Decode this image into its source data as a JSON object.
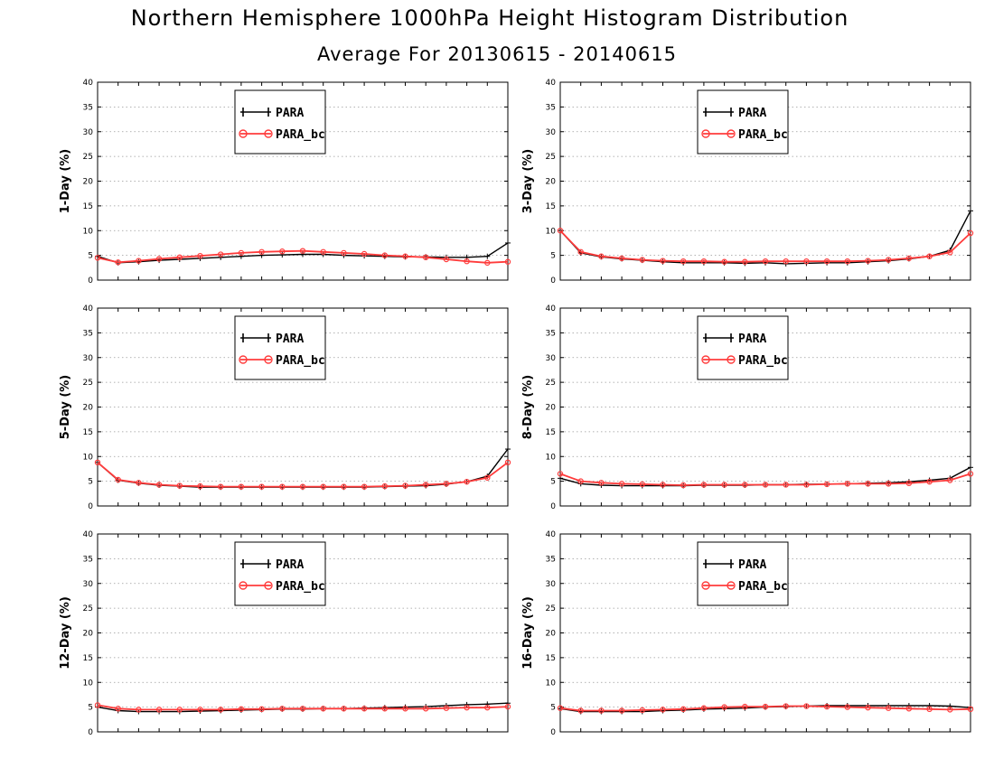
{
  "title": "Northern Hemisphere 1000hPa Height Histogram Distribution",
  "subtitle": "Average For 20130615 - 20140615",
  "colors": {
    "PARA": "#000000",
    "PARA_bc": "#ff3b3b"
  },
  "chart_data": [
    {
      "type": "line",
      "ylabel": "1-Day (%)",
      "ylim": [
        0,
        40
      ],
      "yticks": [
        0,
        5,
        10,
        15,
        20,
        25,
        30,
        35,
        40
      ],
      "grid": true,
      "legend_placement": "top-center",
      "x": [
        1,
        2,
        3,
        4,
        5,
        6,
        7,
        8,
        9,
        10,
        11,
        12,
        13,
        14,
        15,
        16,
        17,
        18,
        19,
        20,
        21
      ],
      "series": [
        {
          "name": "PARA",
          "values": [
            4.8,
            3.5,
            3.7,
            4.0,
            4.2,
            4.4,
            4.6,
            4.8,
            5.0,
            5.1,
            5.2,
            5.2,
            5.0,
            4.9,
            4.8,
            4.7,
            4.7,
            4.6,
            4.6,
            4.8,
            7.5
          ]
        },
        {
          "name": "PARA_bc",
          "values": [
            4.5,
            3.6,
            3.9,
            4.3,
            4.6,
            4.9,
            5.2,
            5.5,
            5.7,
            5.8,
            5.9,
            5.7,
            5.5,
            5.3,
            5.0,
            4.8,
            4.6,
            4.2,
            3.8,
            3.5,
            3.7
          ]
        }
      ]
    },
    {
      "type": "line",
      "ylabel": "3-Day (%)",
      "ylim": [
        0,
        40
      ],
      "yticks": [
        0,
        5,
        10,
        15,
        20,
        25,
        30,
        35,
        40
      ],
      "grid": true,
      "legend_placement": "top-center",
      "x": [
        1,
        2,
        3,
        4,
        5,
        6,
        7,
        8,
        9,
        10,
        11,
        12,
        13,
        14,
        15,
        16,
        17,
        18,
        19,
        20,
        21
      ],
      "series": [
        {
          "name": "PARA",
          "values": [
            10.0,
            5.5,
            4.7,
            4.3,
            4.0,
            3.7,
            3.5,
            3.5,
            3.5,
            3.4,
            3.5,
            3.3,
            3.4,
            3.5,
            3.5,
            3.7,
            3.9,
            4.3,
            4.8,
            6.0,
            14.0
          ]
        },
        {
          "name": "PARA_bc",
          "values": [
            10.0,
            5.7,
            4.8,
            4.4,
            4.1,
            3.9,
            3.8,
            3.8,
            3.7,
            3.7,
            3.8,
            3.8,
            3.8,
            3.8,
            3.8,
            3.9,
            4.1,
            4.4,
            4.8,
            5.6,
            9.5
          ]
        }
      ]
    },
    {
      "type": "line",
      "ylabel": "5-Day (%)",
      "ylim": [
        0,
        40
      ],
      "yticks": [
        0,
        5,
        10,
        15,
        20,
        25,
        30,
        35,
        40
      ],
      "grid": true,
      "legend_placement": "top-center",
      "x": [
        1,
        2,
        3,
        4,
        5,
        6,
        7,
        8,
        9,
        10,
        11,
        12,
        13,
        14,
        15,
        16,
        17,
        18,
        19,
        20,
        21
      ],
      "series": [
        {
          "name": "PARA",
          "values": [
            8.8,
            5.2,
            4.6,
            4.2,
            4.0,
            3.8,
            3.8,
            3.8,
            3.8,
            3.8,
            3.8,
            3.8,
            3.8,
            3.8,
            3.9,
            4.0,
            4.1,
            4.4,
            4.9,
            6.0,
            11.5
          ]
        },
        {
          "name": "PARA_bc",
          "values": [
            8.8,
            5.3,
            4.7,
            4.3,
            4.1,
            4.0,
            3.9,
            3.9,
            3.9,
            3.9,
            3.9,
            3.9,
            3.9,
            3.9,
            4.0,
            4.1,
            4.3,
            4.5,
            4.9,
            5.7,
            8.8
          ]
        }
      ]
    },
    {
      "type": "line",
      "ylabel": "8-Day (%)",
      "ylim": [
        0,
        40
      ],
      "yticks": [
        0,
        5,
        10,
        15,
        20,
        25,
        30,
        35,
        40
      ],
      "grid": true,
      "legend_placement": "top-center",
      "x": [
        1,
        2,
        3,
        4,
        5,
        6,
        7,
        8,
        9,
        10,
        11,
        12,
        13,
        14,
        15,
        16,
        17,
        18,
        19,
        20,
        21
      ],
      "series": [
        {
          "name": "PARA",
          "values": [
            5.6,
            4.5,
            4.2,
            4.1,
            4.1,
            4.1,
            4.1,
            4.2,
            4.2,
            4.2,
            4.3,
            4.3,
            4.4,
            4.4,
            4.5,
            4.6,
            4.7,
            4.9,
            5.2,
            5.6,
            7.8
          ]
        },
        {
          "name": "PARA_bc",
          "values": [
            6.5,
            5.0,
            4.7,
            4.5,
            4.4,
            4.3,
            4.2,
            4.3,
            4.3,
            4.3,
            4.3,
            4.3,
            4.3,
            4.4,
            4.5,
            4.5,
            4.5,
            4.6,
            4.9,
            5.2,
            6.5
          ]
        }
      ]
    },
    {
      "type": "line",
      "ylabel": "12-Day (%)",
      "ylim": [
        0,
        40
      ],
      "yticks": [
        0,
        5,
        10,
        15,
        20,
        25,
        30,
        35,
        40
      ],
      "grid": true,
      "legend_placement": "top-center",
      "x": [
        1,
        2,
        3,
        4,
        5,
        6,
        7,
        8,
        9,
        10,
        11,
        12,
        13,
        14,
        15,
        16,
        17,
        18,
        19,
        20,
        21
      ],
      "series": [
        {
          "name": "PARA",
          "values": [
            5.0,
            4.3,
            4.1,
            4.1,
            4.1,
            4.2,
            4.3,
            4.4,
            4.5,
            4.6,
            4.6,
            4.7,
            4.7,
            4.8,
            4.9,
            5.0,
            5.1,
            5.3,
            5.5,
            5.6,
            5.8
          ]
        },
        {
          "name": "PARA_bc",
          "values": [
            5.4,
            4.7,
            4.5,
            4.5,
            4.5,
            4.5,
            4.5,
            4.6,
            4.6,
            4.7,
            4.7,
            4.7,
            4.7,
            4.7,
            4.7,
            4.7,
            4.7,
            4.8,
            4.9,
            4.9,
            5.1
          ]
        }
      ]
    },
    {
      "type": "line",
      "ylabel": "16-Day (%)",
      "ylim": [
        0,
        40
      ],
      "yticks": [
        0,
        5,
        10,
        15,
        20,
        25,
        30,
        35,
        40
      ],
      "grid": true,
      "legend_placement": "top-center",
      "x": [
        1,
        2,
        3,
        4,
        5,
        6,
        7,
        8,
        9,
        10,
        11,
        12,
        13,
        14,
        15,
        16,
        17,
        18,
        19,
        20,
        21
      ],
      "series": [
        {
          "name": "PARA",
          "values": [
            4.7,
            4.1,
            4.1,
            4.1,
            4.1,
            4.3,
            4.4,
            4.6,
            4.7,
            4.8,
            5.0,
            5.1,
            5.2,
            5.3,
            5.3,
            5.3,
            5.3,
            5.3,
            5.3,
            5.2,
            4.9
          ]
        },
        {
          "name": "PARA_bc",
          "values": [
            4.8,
            4.3,
            4.3,
            4.3,
            4.4,
            4.5,
            4.6,
            4.8,
            5.0,
            5.1,
            5.1,
            5.2,
            5.2,
            5.1,
            5.0,
            4.9,
            4.8,
            4.7,
            4.6,
            4.5,
            4.6
          ]
        }
      ]
    }
  ]
}
